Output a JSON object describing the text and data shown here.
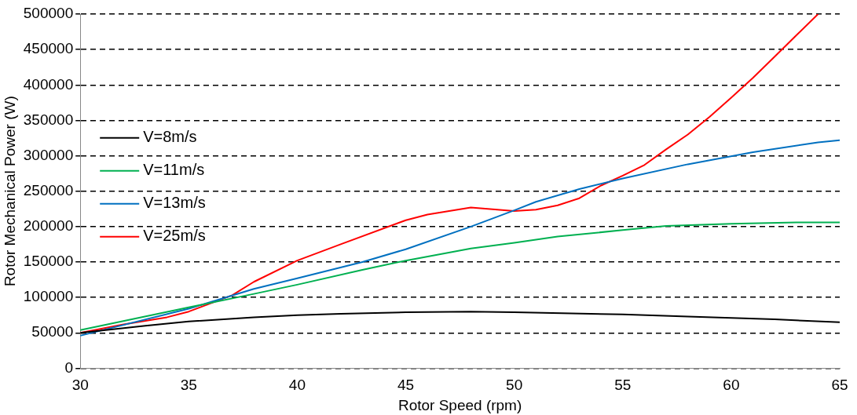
{
  "chart_data": {
    "type": "line",
    "xlabel": "Rotor Speed (rpm)",
    "ylabel": "Rotor Mechanical Power (W)",
    "xlim": [
      30,
      65
    ],
    "xticks": [
      30,
      35,
      40,
      45,
      50,
      55,
      60,
      65
    ],
    "ylim": [
      0,
      500000
    ],
    "yticks": [
      0,
      50000,
      100000,
      150000,
      200000,
      250000,
      300000,
      350000,
      400000,
      450000,
      500000
    ],
    "grid": "y",
    "legend": "left",
    "marker": "none",
    "line_style": "solid",
    "series": [
      {
        "name": "V=8m/s",
        "color": "#000000",
        "x": [
          30,
          33,
          35,
          38,
          40,
          42,
          45,
          48,
          50,
          55,
          58,
          60,
          62,
          65
        ],
        "values": [
          50000,
          60000,
          66000,
          72000,
          75000,
          77000,
          79000,
          80000,
          79000,
          76000,
          73000,
          71000,
          69000,
          65000
        ]
      },
      {
        "name": "V=11m/s",
        "color": "#00b050",
        "x": [
          30,
          35,
          38,
          40,
          43,
          45,
          48,
          50,
          52,
          55,
          57,
          60,
          63,
          65
        ],
        "values": [
          54000,
          86000,
          105000,
          118000,
          139000,
          152000,
          169000,
          177000,
          186000,
          195000,
          201000,
          204000,
          206000,
          206000
        ]
      },
      {
        "name": "V=13m/s",
        "color": "#0070c0",
        "x": [
          30,
          35,
          38,
          40,
          43,
          45,
          48,
          50,
          51,
          53,
          55,
          58,
          61,
          64,
          65
        ],
        "values": [
          46000,
          84000,
          112000,
          127000,
          150000,
          168000,
          200000,
          223000,
          235000,
          253000,
          268000,
          288000,
          305000,
          319000,
          322000
        ]
      },
      {
        "name": "V=25m/s",
        "color": "#ff0000",
        "x": [
          30,
          32,
          34,
          35,
          37,
          38,
          40,
          42,
          45,
          46,
          47,
          48,
          50,
          51,
          52,
          53,
          54,
          55,
          56,
          57,
          58,
          59,
          60,
          61,
          62,
          63,
          64
        ],
        "values": [
          50000,
          62000,
          72000,
          80000,
          103000,
          122000,
          152000,
          175000,
          209000,
          217000,
          222000,
          227000,
          222000,
          224000,
          230000,
          240000,
          258000,
          272000,
          287000,
          309000,
          330000,
          355000,
          382000,
          410000,
          440000,
          470000,
          500000
        ]
      }
    ]
  }
}
